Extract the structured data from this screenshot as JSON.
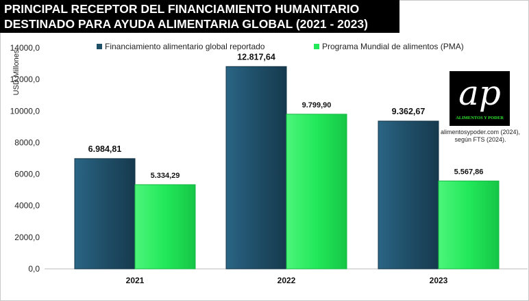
{
  "chart_data": {
    "type": "bar",
    "title": "PRINCIPAL RECEPTOR DEL FINANCIAMIENTO HUMANITARIO DESTINADO PARA AYUDA ALIMENTARIA GLOBAL (2021 - 2023)",
    "ylabel": "USD Millones",
    "xlabel": "",
    "ylim": [
      0,
      14000
    ],
    "yticks": [
      "0,0",
      "2000,0",
      "4000,0",
      "6000,0",
      "8000,0",
      "10000,0",
      "12000,0",
      "14000,0"
    ],
    "categories": [
      "2021",
      "2022",
      "2023"
    ],
    "legend_position": "top",
    "series": [
      {
        "name": "Financiamiento alimentario global reportado",
        "color": "#1f4e67",
        "values": [
          6984.81,
          12817.64,
          9362.67
        ],
        "labels": [
          "6.984,81",
          "12.817,64",
          "9.362,67"
        ]
      },
      {
        "name": "Programa Mundial de alimentos (PMA)",
        "color": "#22e85a",
        "values": [
          5334.29,
          9799.9,
          5567.86
        ],
        "labels": [
          "5.334,29",
          "9.799,90",
          "5.567,86"
        ]
      }
    ]
  },
  "logo": {
    "mark": "ap",
    "brand": "ALIMENTOS Y PODER"
  },
  "source": {
    "line1": "alimentosypoder.com (2024),",
    "line2": "según FTS (2024)."
  }
}
